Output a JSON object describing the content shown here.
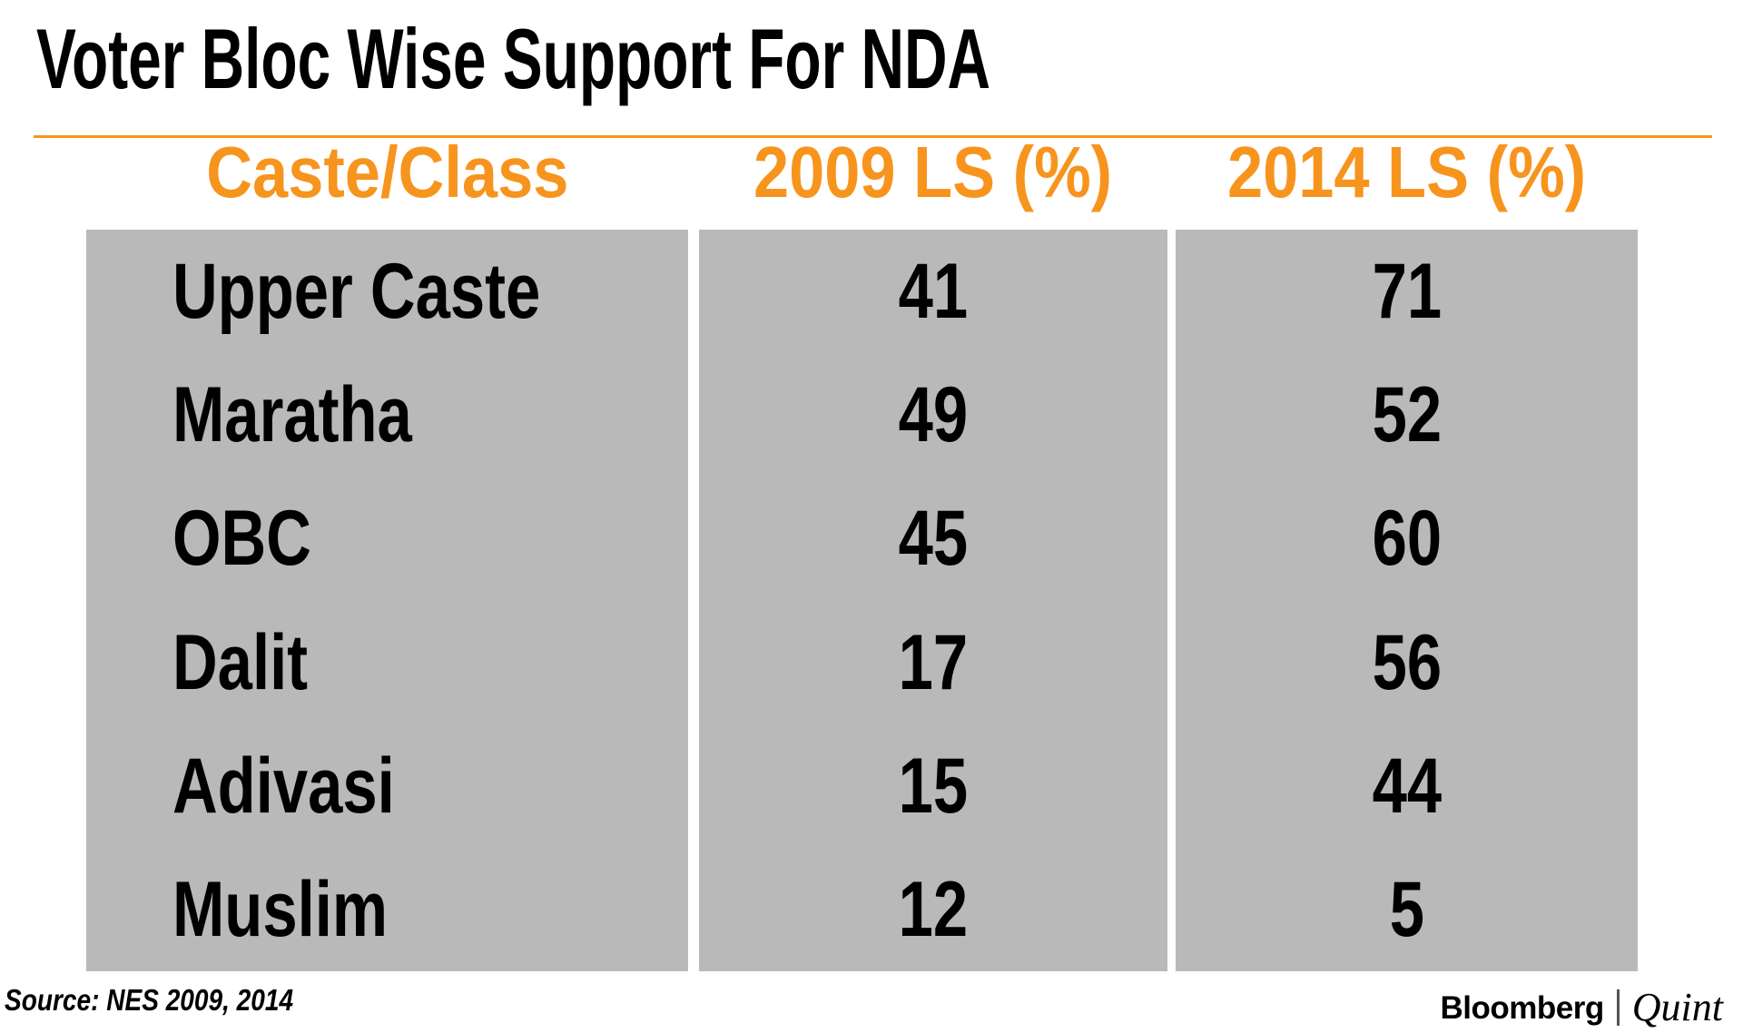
{
  "title": "Voter Bloc Wise Support For NDA",
  "table": {
    "headers": [
      "Caste/Class",
      "2009 LS (%)",
      "2014 LS (%)"
    ],
    "rows": [
      {
        "label": "Upper Caste",
        "ls2009": "41",
        "ls2014": "71"
      },
      {
        "label": "Maratha",
        "ls2009": "49",
        "ls2014": "52"
      },
      {
        "label": "OBC",
        "ls2009": "45",
        "ls2014": "60"
      },
      {
        "label": "Dalit",
        "ls2009": "17",
        "ls2014": "56"
      },
      {
        "label": "Adivasi",
        "ls2009": "15",
        "ls2014": "44"
      },
      {
        "label": "Muslim",
        "ls2009": "12",
        "ls2014": "5"
      }
    ]
  },
  "source": "Source: NES 2009, 2014",
  "logo": {
    "bloomberg": "Bloomberg",
    "quint": "Quint"
  },
  "colors": {
    "accent_orange": "#f7941e",
    "cell_gray": "#b9b9b9",
    "text_black": "#000000",
    "logo_divider_gray": "#555555"
  },
  "chart_data": {
    "type": "table",
    "title": "Voter Bloc Wise Support For NDA",
    "columns": [
      "Caste/Class",
      "2009 LS (%)",
      "2014 LS (%)"
    ],
    "rows": [
      [
        "Upper Caste",
        41,
        71
      ],
      [
        "Maratha",
        49,
        52
      ],
      [
        "OBC",
        45,
        60
      ],
      [
        "Dalit",
        17,
        56
      ],
      [
        "Adivasi",
        15,
        44
      ],
      [
        "Muslim",
        12,
        5
      ]
    ],
    "source": "NES 2009, 2014",
    "notes": "Header row orange, body rows on gray column blocks separated by white gutters"
  }
}
